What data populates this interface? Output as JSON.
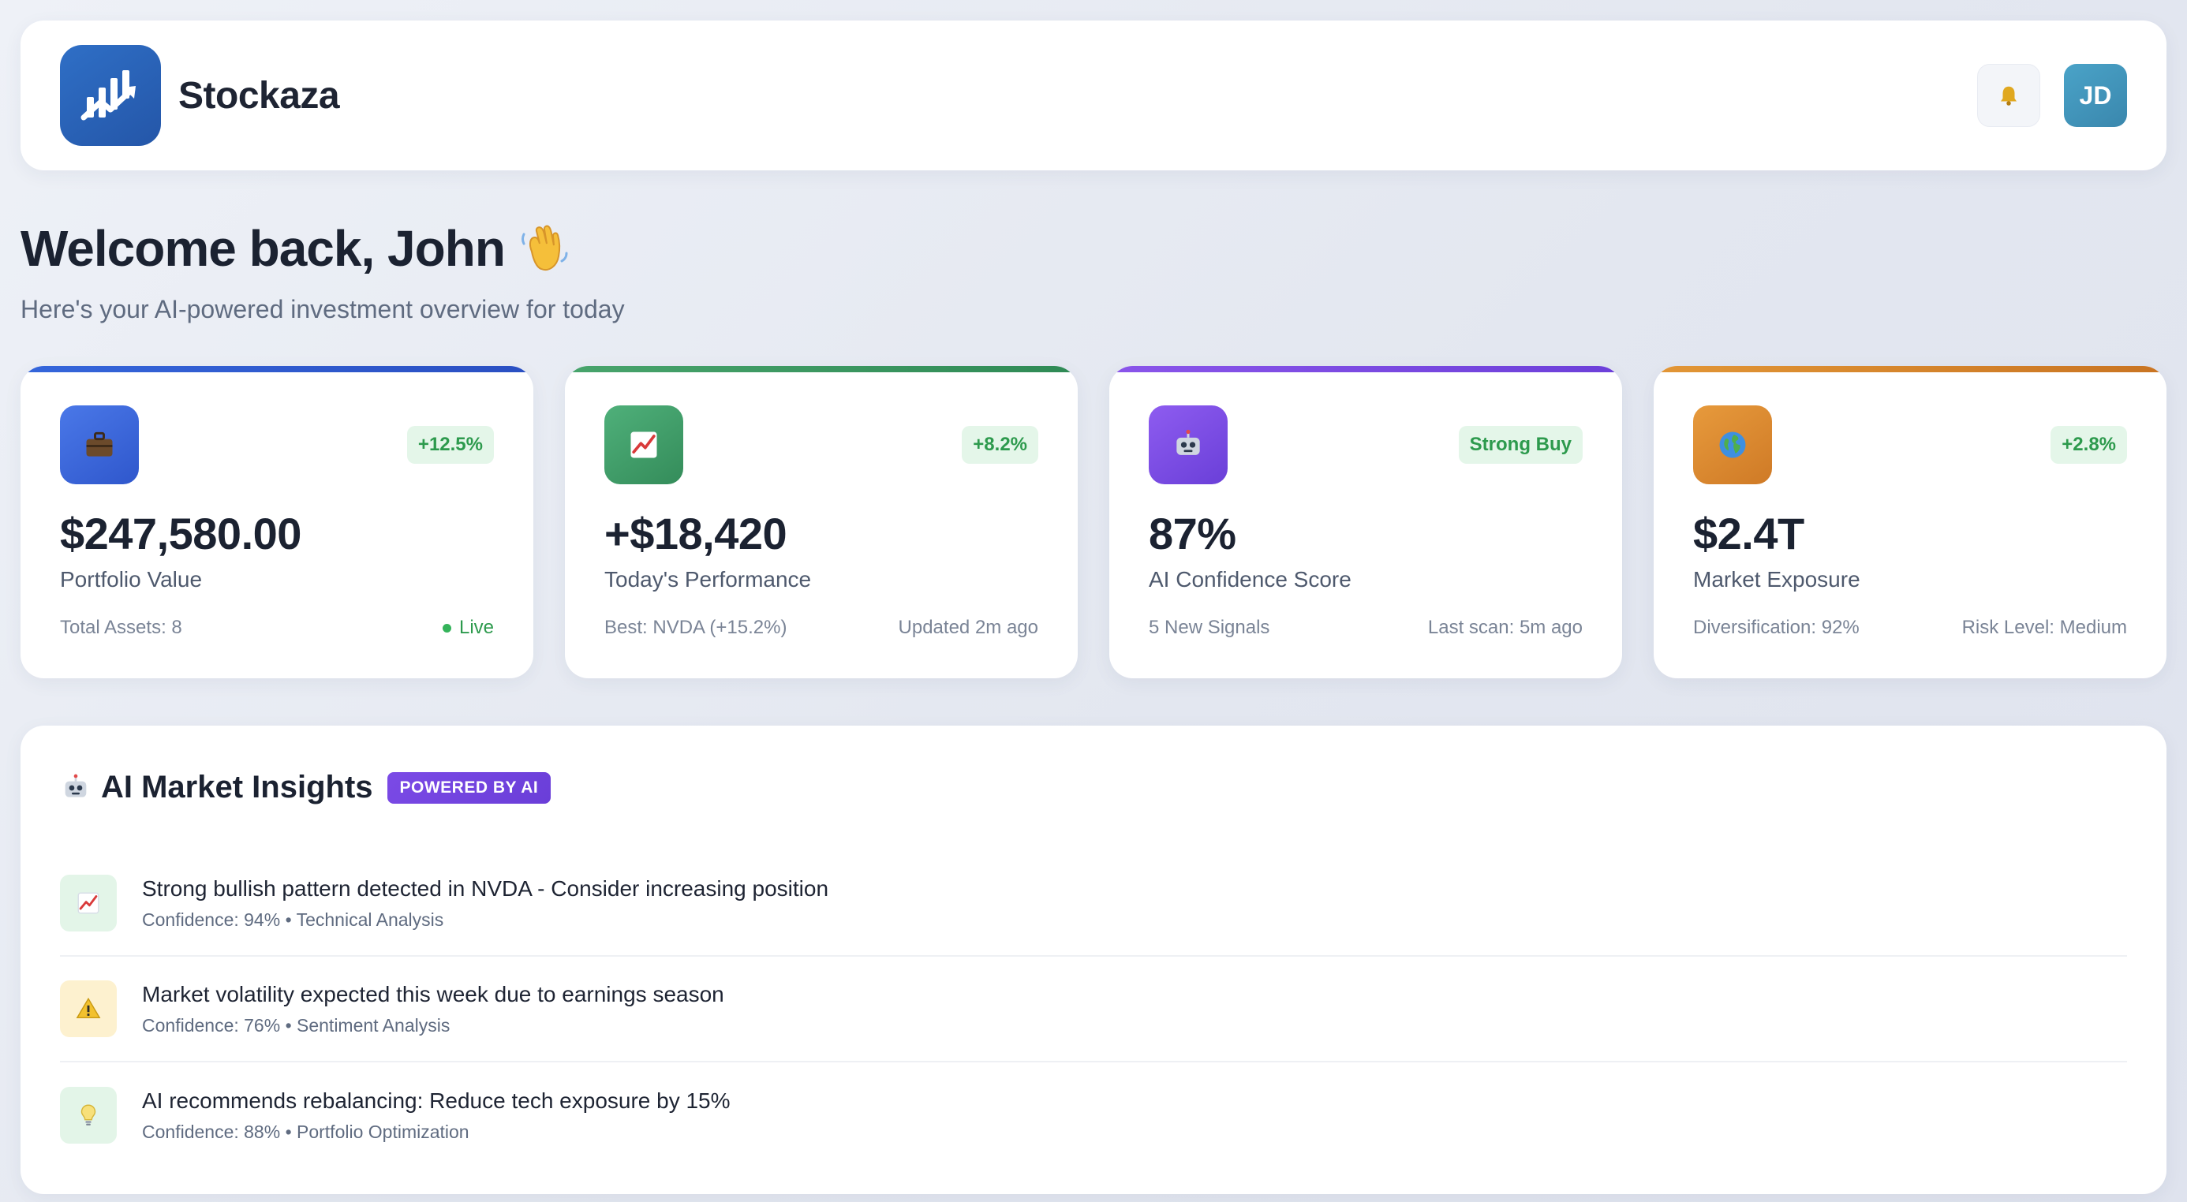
{
  "header": {
    "brand": "Stockaza",
    "avatar_initials": "JD",
    "logo_icon": "chart-logo-icon",
    "bell_icon": "bell-icon"
  },
  "welcome": {
    "title": "Welcome back, John",
    "subtitle": "Here's your AI-powered investment overview for today"
  },
  "cards": [
    {
      "icon": "briefcase-icon",
      "badge": "+12.5%",
      "value": "$247,580.00",
      "label": "Portfolio Value",
      "foot_left": "Total Assets: 8",
      "foot_right": "Live",
      "accent": "#3a63d8"
    },
    {
      "icon": "chart-up-icon",
      "badge": "+8.2%",
      "value": "+$18,420",
      "label": "Today's Performance",
      "foot_left": "Best: NVDA (+15.2%)",
      "foot_right": "Updated 2m ago",
      "accent": "#3f9a63"
    },
    {
      "icon": "robot-icon",
      "badge": "Strong Buy",
      "value": "87%",
      "label": "AI Confidence Score",
      "foot_left": "5 New Signals",
      "foot_right": "Last scan: 5m ago",
      "accent": "#7a45e0"
    },
    {
      "icon": "globe-icon",
      "badge": "+2.8%",
      "value": "$2.4T",
      "label": "Market Exposure",
      "foot_left": "Diversification: 92%",
      "foot_right": "Risk Level: Medium",
      "accent": "#d9872a"
    }
  ],
  "insights": {
    "title": "AI Market Insights",
    "badge": "POWERED BY AI",
    "items": [
      {
        "icon": "chart-up-icon",
        "text": "Strong bullish pattern detected in NVDA - Consider increasing position",
        "meta": "Confidence: 94% • Technical Analysis"
      },
      {
        "icon": "warning-icon",
        "text": "Market volatility expected this week due to earnings season",
        "meta": "Confidence: 76% • Sentiment Analysis"
      },
      {
        "icon": "lightbulb-icon",
        "text": "AI recommends rebalancing: Reduce tech exposure by 15%",
        "meta": "Confidence: 88% • Portfolio Optimization"
      }
    ]
  }
}
